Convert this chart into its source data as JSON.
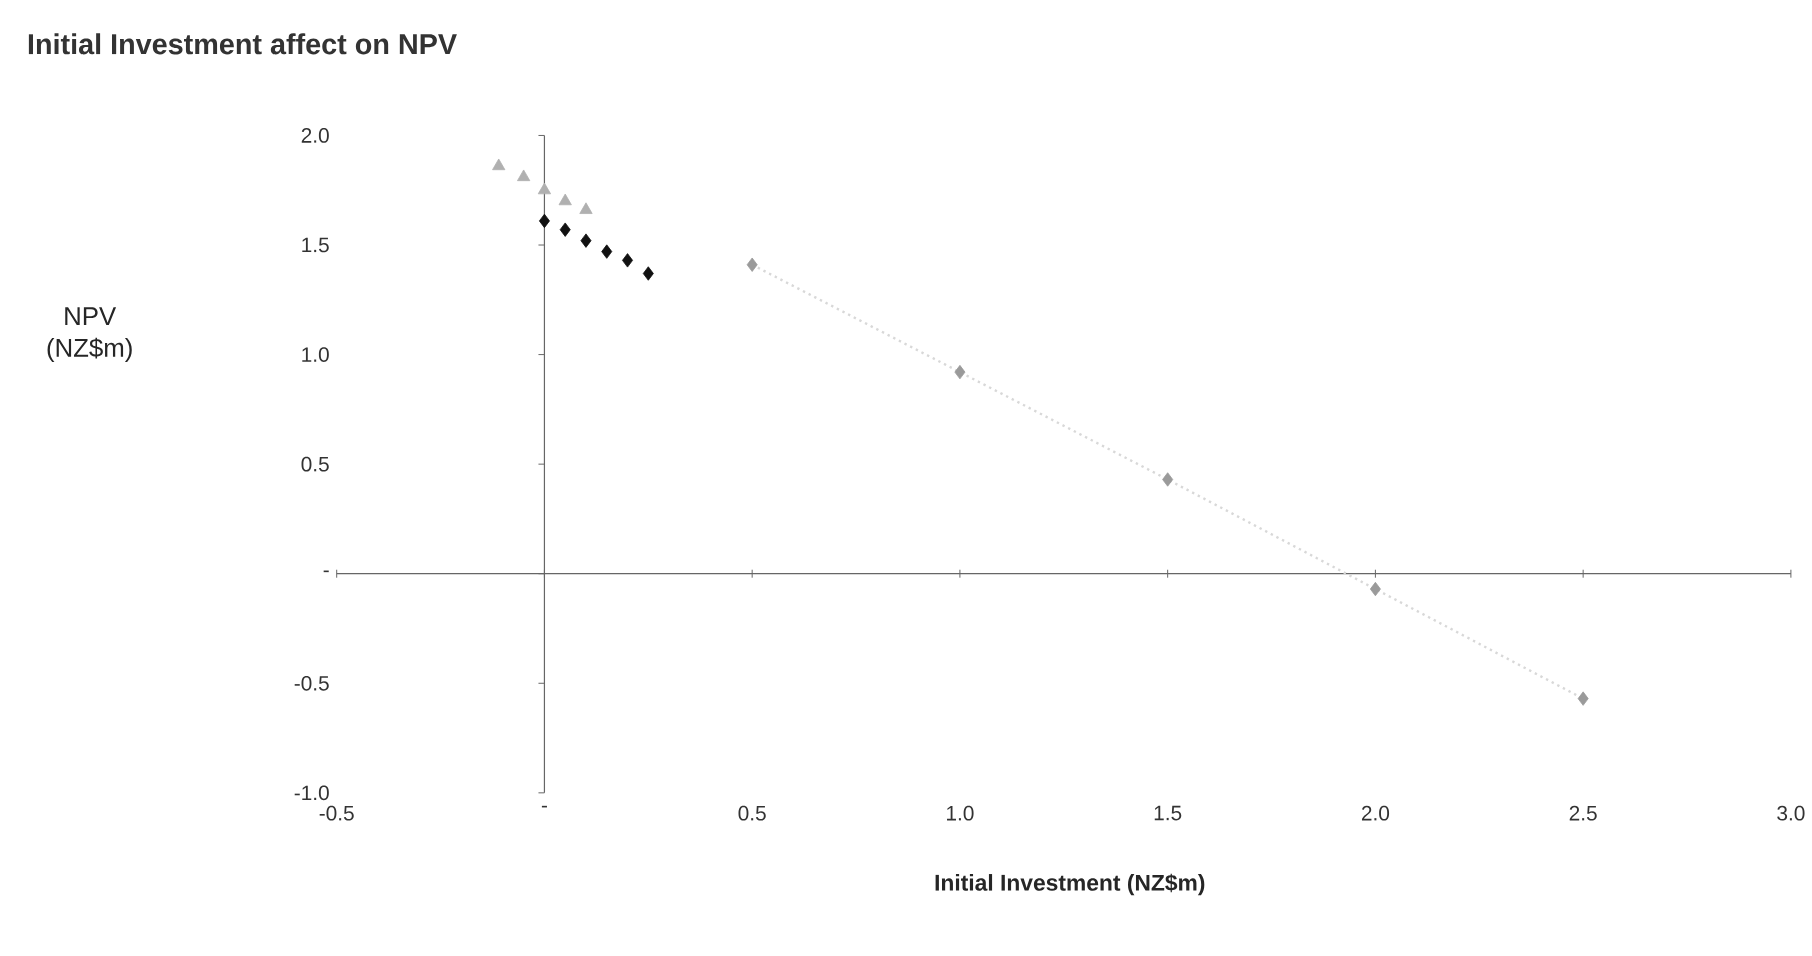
{
  "chart_data": {
    "type": "scatter",
    "title": "Initial Investment affect on NPV",
    "xlabel": "Initial Investment (NZ$m)",
    "annotations": [
      "NPV (NZ$m)"
    ],
    "xlim": [
      -0.5,
      3.0
    ],
    "ylim": [
      -1.0,
      2.0
    ],
    "xticks": [
      -0.5,
      {
        "value": 0,
        "label": "-"
      },
      0.5,
      {
        "value": 1,
        "label": "1.0"
      },
      1.5,
      {
        "value": 2,
        "label": "2.0"
      },
      2.5,
      {
        "value": 3,
        "label": "3.0"
      }
    ],
    "yticks": [
      {
        "value": -1,
        "label": "-1.0"
      },
      -0.5,
      {
        "value": 0,
        "label": "-"
      },
      0.5,
      {
        "value": 1,
        "label": "1.0"
      },
      1.5,
      {
        "value": 2,
        "label": "2.0"
      }
    ],
    "series": [
      {
        "type": "line",
        "color": "#d8d8d8",
        "marker": "none",
        "line_style": "dotted",
        "x": [
          0.5,
          1.0,
          1.5,
          2.0,
          2.5
        ],
        "values": [
          1.41,
          0.92,
          0.43,
          -0.07,
          -0.57
        ]
      },
      {
        "color": "#b0b0b0",
        "marker": "triangle",
        "x": [
          -0.11,
          -0.05,
          0,
          0.05,
          0.1
        ],
        "values": [
          1.86,
          1.81,
          1.75,
          1.7,
          1.66
        ]
      },
      {
        "color": "#111111",
        "marker": "diamond",
        "x": [
          0,
          0.05,
          0.1,
          0.15,
          0.2,
          0.25
        ],
        "values": [
          1.61,
          1.57,
          1.52,
          1.47,
          1.43,
          1.37
        ]
      },
      {
        "color": "#9a9a9a",
        "marker": "diamond",
        "x": [
          0.5,
          1.0,
          1.5,
          2.0,
          2.5
        ],
        "values": [
          1.41,
          0.92,
          0.43,
          -0.07,
          -0.57
        ]
      }
    ]
  }
}
